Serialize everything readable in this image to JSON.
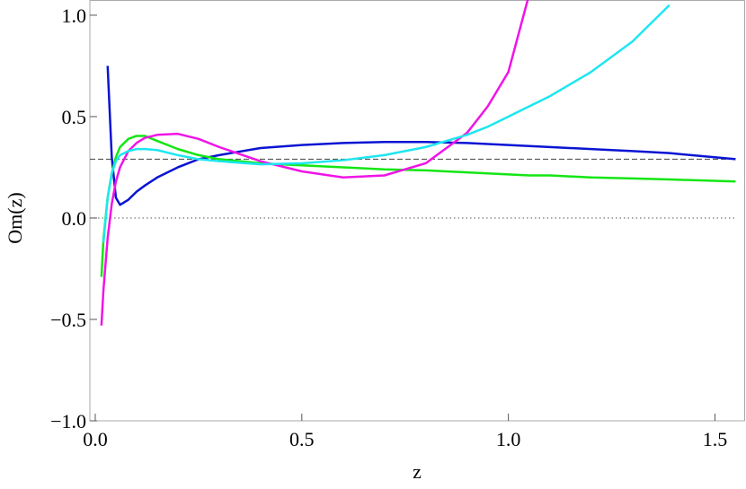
{
  "chart_data": {
    "type": "line",
    "xlabel": "z",
    "ylabel": "Om(z)",
    "x": [
      0.015,
      0.02,
      0.03,
      0.04,
      0.05,
      0.06,
      0.08,
      0.1,
      0.12,
      0.15,
      0.2,
      0.25,
      0.3,
      0.4,
      0.5,
      0.6,
      0.7,
      0.8,
      0.9,
      0.95,
      1.0,
      1.05,
      1.1,
      1.2,
      1.3,
      1.39,
      1.55
    ],
    "series": [
      {
        "color": "#0a14d2",
        "values": [
          null,
          null,
          0.75,
          0.3,
          0.1,
          0.065,
          0.09,
          0.13,
          0.16,
          0.2,
          0.25,
          0.29,
          0.31,
          0.345,
          0.36,
          0.37,
          0.375,
          0.375,
          0.37,
          0.365,
          0.36,
          0.355,
          0.35,
          0.34,
          0.33,
          0.32,
          0.29
        ]
      },
      {
        "color": "#14e614",
        "values": [
          -0.29,
          -0.1,
          0.1,
          0.22,
          0.3,
          0.35,
          0.39,
          0.405,
          0.405,
          0.38,
          0.34,
          0.31,
          0.29,
          0.27,
          0.26,
          0.25,
          0.24,
          0.235,
          0.225,
          0.22,
          0.215,
          0.21,
          0.21,
          0.2,
          0.195,
          0.19,
          0.18
        ]
      },
      {
        "color": "#f014e6",
        "values": [
          -0.53,
          -0.35,
          -0.1,
          0.07,
          0.18,
          0.25,
          0.33,
          0.37,
          0.395,
          0.41,
          0.415,
          0.39,
          0.35,
          0.28,
          0.23,
          0.2,
          0.21,
          0.27,
          0.42,
          0.55,
          0.72,
          1.1,
          null,
          null,
          null,
          null,
          null
        ]
      },
      {
        "color": "#1ee6f0",
        "values": [
          null,
          -0.12,
          0.1,
          0.22,
          0.28,
          0.31,
          0.33,
          0.34,
          0.34,
          0.335,
          0.31,
          0.29,
          0.28,
          0.265,
          0.27,
          0.285,
          0.31,
          0.35,
          0.41,
          0.45,
          0.5,
          0.55,
          0.6,
          0.72,
          0.87,
          1.05,
          null
        ]
      }
    ],
    "reference_lines": [
      {
        "value": 0.29,
        "style": "dashed"
      },
      {
        "value": 0,
        "style": "dotted"
      }
    ],
    "xlim": [
      -0.013,
      1.573
    ],
    "ylim": [
      -1.0,
      1.075
    ],
    "xticks": [
      {
        "value": 0,
        "label": "0.0"
      },
      0.5,
      {
        "value": 1,
        "label": "1.0"
      },
      1.5
    ],
    "yticks": [
      {
        "value": -1,
        "label": "−1.0"
      },
      {
        "value": -0.5,
        "label": "−0.5"
      },
      {
        "value": 0,
        "label": "0.0"
      },
      0.5,
      {
        "value": 1,
        "label": "1.0"
      }
    ]
  }
}
